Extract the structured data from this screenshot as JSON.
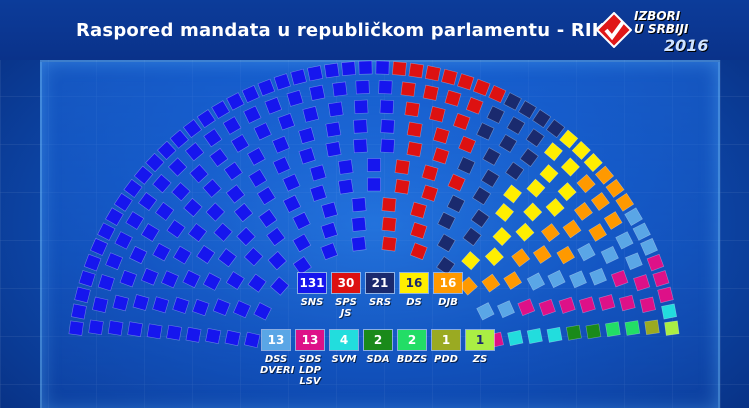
{
  "title": "Raspored mandata u republičkom parlamentu - RIK",
  "logo": {
    "line1": "IZBORI",
    "line2": "U SRBIJI",
    "year": "2016"
  },
  "chart_data": {
    "type": "parliament",
    "title": "Raspored mandata u republičkom parlamentu - RIK",
    "series": [
      {
        "name": "SNS",
        "value": 131,
        "color": "#1616ee",
        "text_color": "#ffffff"
      },
      {
        "name": "SPS\nJS",
        "value": 30,
        "color": "#dd1111",
        "text_color": "#ffffff"
      },
      {
        "name": "SRS",
        "value": 21,
        "color": "#1a2a6e",
        "text_color": "#ffffff"
      },
      {
        "name": "DS",
        "value": 16,
        "color": "#ffee00",
        "text_color": "#1a2a6e"
      },
      {
        "name": "DJB",
        "value": 16,
        "color": "#ff9900",
        "text_color": "#ffffff"
      },
      {
        "name": "DSS\nDVERI",
        "value": 13,
        "color": "#5aa6e6",
        "text_color": "#ffffff"
      },
      {
        "name": "SDS\nLDP\nLSV",
        "value": 13,
        "color": "#dd1188",
        "text_color": "#ffffff"
      },
      {
        "name": "SVM",
        "value": 4,
        "color": "#22dddd",
        "text_color": "#ffffff"
      },
      {
        "name": "SDA",
        "value": 2,
        "color": "#1a8a1a",
        "text_color": "#ffffff"
      },
      {
        "name": "BDZS",
        "value": 2,
        "color": "#22dd66",
        "text_color": "#ffffff"
      },
      {
        "name": "PDD",
        "value": 1,
        "color": "#9aaa22",
        "text_color": "#ffffff"
      },
      {
        "name": "ZS",
        "value": 1,
        "color": "#aaee44",
        "text_color": "#1a2a6e"
      }
    ],
    "total": 250
  }
}
